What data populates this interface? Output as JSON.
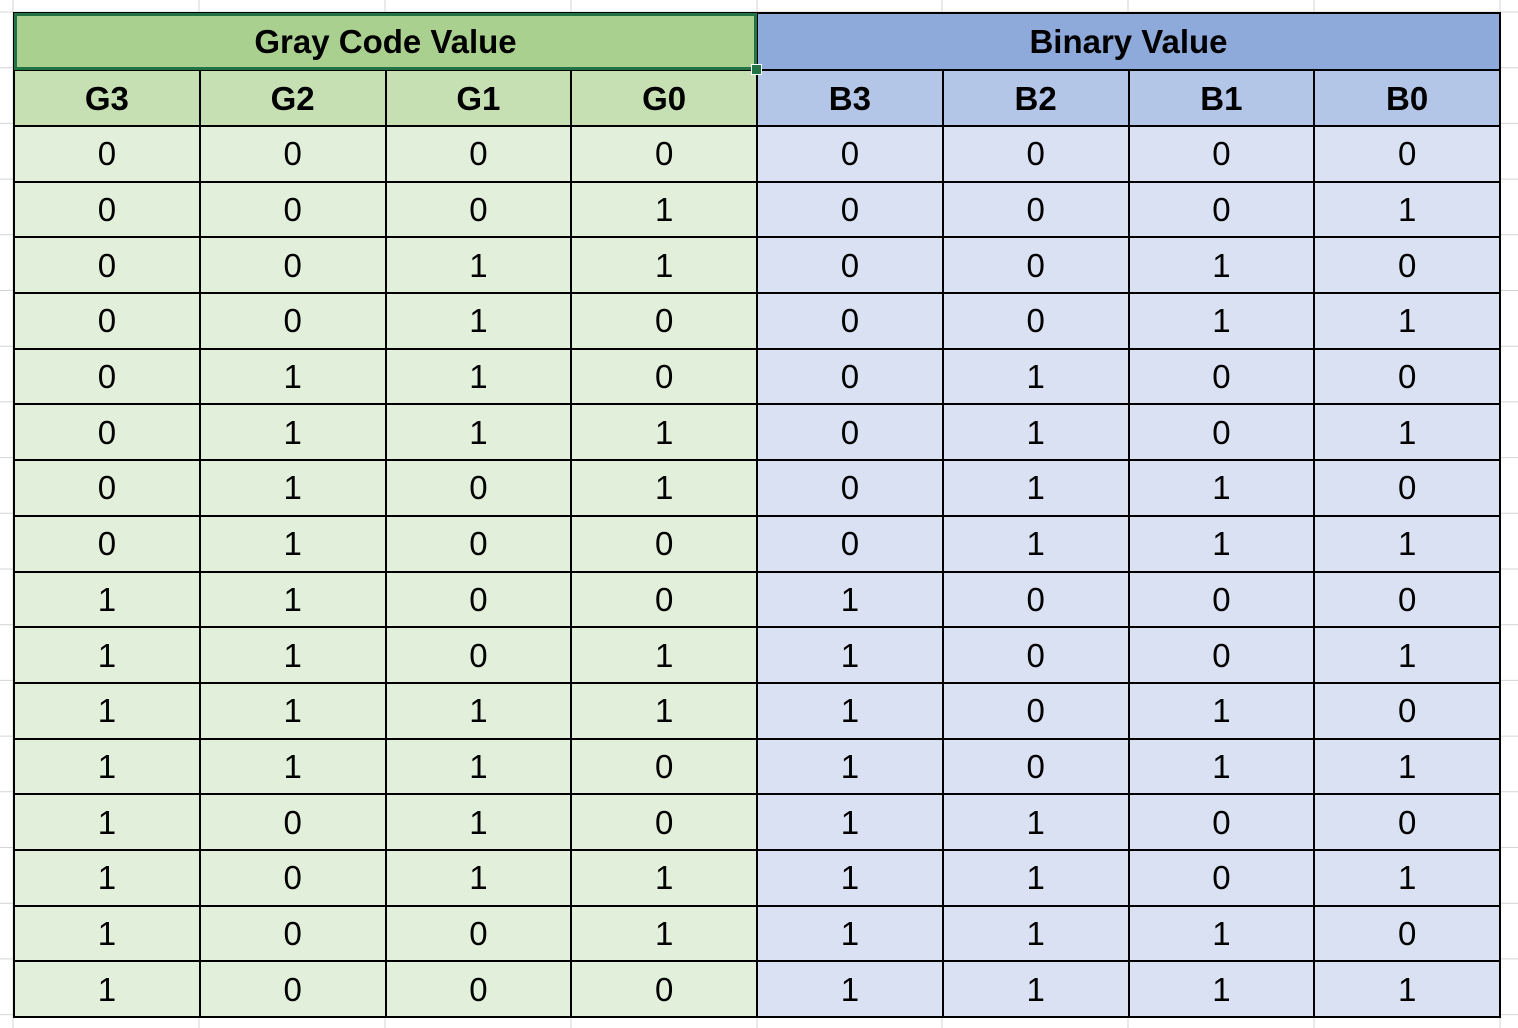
{
  "colors": {
    "gray_group_bg": "#a9d08e",
    "gray_header_bg": "#c6e0b4",
    "gray_cell_bg": "#e2efda",
    "binary_group_bg": "#8eaadb",
    "binary_header_bg": "#b4c6e7",
    "binary_cell_bg": "#d9e1f2",
    "selection": "#217346"
  },
  "groups": {
    "gray": "Gray Code Value",
    "binary": "Binary Value"
  },
  "headers": [
    "G3",
    "G2",
    "G1",
    "G0",
    "B3",
    "B2",
    "B1",
    "B0"
  ],
  "rows": [
    [
      "0",
      "0",
      "0",
      "0",
      "0",
      "0",
      "0",
      "0"
    ],
    [
      "0",
      "0",
      "0",
      "1",
      "0",
      "0",
      "0",
      "1"
    ],
    [
      "0",
      "0",
      "1",
      "1",
      "0",
      "0",
      "1",
      "0"
    ],
    [
      "0",
      "0",
      "1",
      "0",
      "0",
      "0",
      "1",
      "1"
    ],
    [
      "0",
      "1",
      "1",
      "0",
      "0",
      "1",
      "0",
      "0"
    ],
    [
      "0",
      "1",
      "1",
      "1",
      "0",
      "1",
      "0",
      "1"
    ],
    [
      "0",
      "1",
      "0",
      "1",
      "0",
      "1",
      "1",
      "0"
    ],
    [
      "0",
      "1",
      "0",
      "0",
      "0",
      "1",
      "1",
      "1"
    ],
    [
      "1",
      "1",
      "0",
      "0",
      "1",
      "0",
      "0",
      "0"
    ],
    [
      "1",
      "1",
      "0",
      "1",
      "1",
      "0",
      "0",
      "1"
    ],
    [
      "1",
      "1",
      "1",
      "1",
      "1",
      "0",
      "1",
      "0"
    ],
    [
      "1",
      "1",
      "1",
      "0",
      "1",
      "0",
      "1",
      "1"
    ],
    [
      "1",
      "0",
      "1",
      "0",
      "1",
      "1",
      "0",
      "0"
    ],
    [
      "1",
      "0",
      "1",
      "1",
      "1",
      "1",
      "0",
      "1"
    ],
    [
      "1",
      "0",
      "0",
      "1",
      "1",
      "1",
      "1",
      "0"
    ],
    [
      "1",
      "0",
      "0",
      "0",
      "1",
      "1",
      "1",
      "1"
    ]
  ]
}
